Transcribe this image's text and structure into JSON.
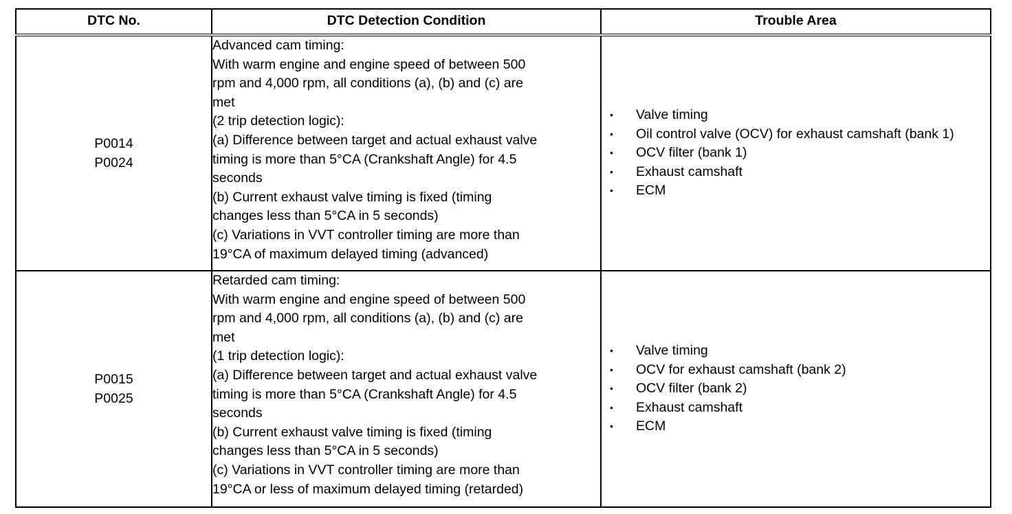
{
  "headers": {
    "dtc_no": "DTC No.",
    "condition": "DTC Detection Condition",
    "trouble_area": "Trouble Area"
  },
  "rows": [
    {
      "codes": [
        "P0014",
        "P0024"
      ],
      "condition_lines": [
        "Advanced cam timing:",
        "With warm engine and engine speed of between 500",
        "rpm and 4,000 rpm, all conditions (a), (b) and (c) are",
        "met",
        "(2 trip detection logic):",
        "(a) Difference between target and actual exhaust valve",
        "timing is more than 5°CA (Crankshaft Angle) for 4.5",
        "seconds",
        "(b) Current exhaust valve timing is fixed (timing",
        "changes less than 5°CA in 5 seconds)",
        "(c) Variations in VVT controller timing are more than",
        "19°CA of maximum delayed timing (advanced)"
      ],
      "bullet": "•",
      "trouble_areas": [
        "Valve timing",
        "Oil control valve (OCV) for exhaust camshaft (bank 1)",
        "OCV filter (bank 1)",
        "Exhaust camshaft",
        "ECM"
      ]
    },
    {
      "codes": [
        "P0015",
        "P0025"
      ],
      "condition_lines": [
        "Retarded cam timing:",
        "With warm engine and engine speed of between 500",
        "rpm and 4,000 rpm, all conditions (a), (b) and (c) are",
        "met",
        "(1 trip detection logic):",
        "(a) Difference between target and actual exhaust valve",
        "timing is more than 5°CA (Crankshaft Angle) for 4.5",
        "seconds",
        "(b) Current exhaust valve timing is fixed (timing",
        "changes less than 5°CA in 5 seconds)",
        "(c) Variations in VVT controller timing are more than",
        "19°CA or less of maximum delayed timing (retarded)"
      ],
      "bullet": "•",
      "trouble_areas": [
        "Valve timing",
        "OCV for exhaust camshaft (bank 2)",
        "OCV filter (bank 2)",
        "Exhaust camshaft",
        "ECM"
      ]
    }
  ]
}
